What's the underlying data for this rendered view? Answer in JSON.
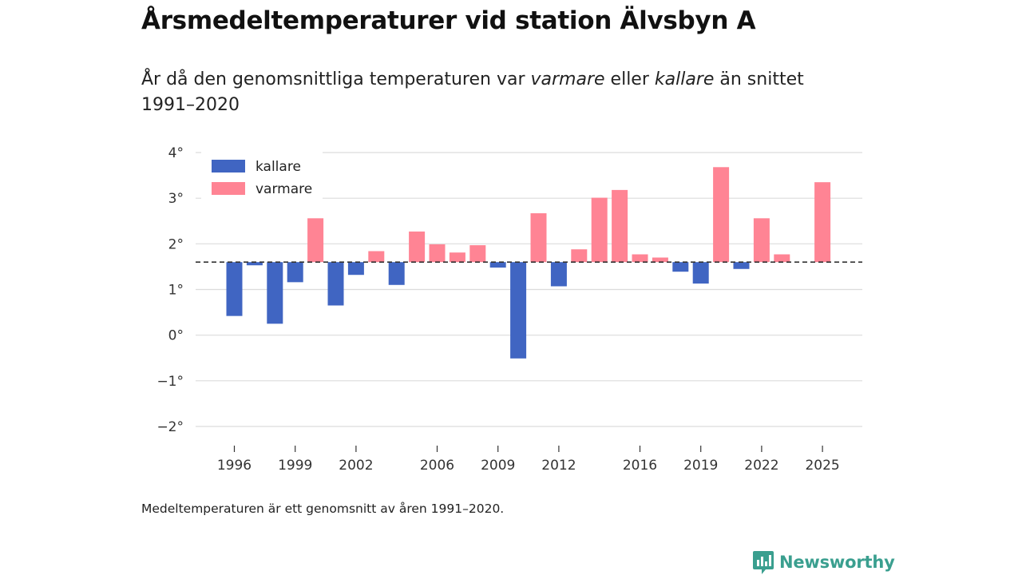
{
  "header": {
    "title": "Årsmedeltemperaturer vid station Älvsbyn A",
    "subtitle_part1": "År då den genomsnittliga temperaturen var ",
    "subtitle_warm": "varmare",
    "subtitle_part2": " eller ",
    "subtitle_cold": "kallare",
    "subtitle_part3": " än snittet 1991–2020"
  },
  "footnote": "Medeltemperaturen är ett genomsnitt av åren 1991–2020.",
  "brand": {
    "name": "Newsworthy",
    "icon": "newsworthy-logo-icon",
    "color": "#3a9f8f"
  },
  "chart_data": {
    "type": "bar",
    "title": "Årsmedeltemperaturer vid station Älvsbyn A",
    "baseline": 1.6,
    "baseline_style": "dashed",
    "ylim": [
      -2.4,
      4.0
    ],
    "yticks": [
      -2,
      -1,
      0,
      1,
      2,
      3,
      4
    ],
    "ytick_suffix": "°",
    "xlim": [
      1994.5,
      2027.0
    ],
    "xticks": [
      1996,
      1999,
      2002,
      2006,
      2009,
      2012,
      2016,
      2019,
      2022,
      2025
    ],
    "legend": [
      {
        "key": "kallare",
        "label": "kallare",
        "color": "#4065c2"
      },
      {
        "key": "varmare",
        "label": "varmare",
        "color": "#ff8494"
      }
    ],
    "legend_position": "top-left",
    "colors": {
      "kallare": "#4065c2",
      "varmare": "#ff8494"
    },
    "series": [
      {
        "name": "Årsmedeltemperatur",
        "x": [
          1996,
          1997,
          1998,
          1999,
          2000,
          2001,
          2002,
          2003,
          2004,
          2005,
          2006,
          2007,
          2008,
          2009,
          2010,
          2011,
          2012,
          2013,
          2014,
          2015,
          2016,
          2017,
          2018,
          2019,
          2020,
          2021,
          2022,
          2023,
          2025
        ],
        "values": [
          0.42,
          1.53,
          0.25,
          1.16,
          2.56,
          0.65,
          1.32,
          1.84,
          1.1,
          2.27,
          1.99,
          1.81,
          1.97,
          1.48,
          -0.51,
          2.67,
          1.07,
          1.88,
          3.01,
          3.18,
          1.77,
          1.7,
          1.39,
          1.13,
          3.68,
          1.45,
          2.56,
          1.77,
          3.35
        ]
      }
    ]
  }
}
